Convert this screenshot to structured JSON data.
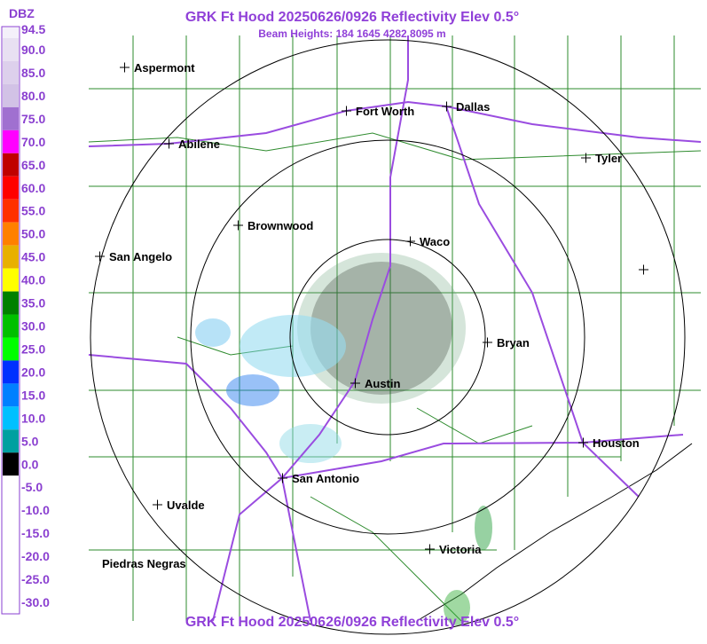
{
  "header": {
    "title": "GRK Ft Hood 20250626/0926 Reflectivity Elev 0.5°",
    "subtitle": "Beam Heights: 184 1645 4282 8095 m"
  },
  "footer": {
    "title": "GRK Ft Hood 20250626/0926 Reflectivity Elev 0.5°"
  },
  "legend": {
    "unit": "DBZ",
    "labels": [
      "94.5",
      "90.0",
      "85.0",
      "80.0",
      "75.0",
      "70.0",
      "65.0",
      "60.0",
      "55.0",
      "50.0",
      "45.0",
      "40.0",
      "35.0",
      "30.0",
      "25.0",
      "20.0",
      "15.0",
      "10.0",
      "5.0",
      "0.0",
      "-5.0",
      "-10.0",
      "-15.0",
      "-20.0",
      "-25.0",
      "-30.0"
    ],
    "colors": [
      "#f4f0fa",
      "#e8e0f2",
      "#ddd0ec",
      "#d2c2e6",
      "#a070d0",
      "#ff00ff",
      "#c00000",
      "#ff0000",
      "#ff3000",
      "#ff8000",
      "#e8b000",
      "#ffff00",
      "#008000",
      "#00c000",
      "#00ff00",
      "#0030ff",
      "#0080ff",
      "#00c0ff",
      "#00a0a0",
      "#000000",
      "#ffffff",
      "#ffffff",
      "#ffffff",
      "#ffffff",
      "#ffffff"
    ]
  },
  "cities": [
    {
      "name": "Aspermont"
    },
    {
      "name": "Abilene"
    },
    {
      "name": "Fort Worth"
    },
    {
      "name": "Dallas"
    },
    {
      "name": "Tyler"
    },
    {
      "name": "Brownwood"
    },
    {
      "name": "Waco"
    },
    {
      "name": "San Angelo"
    },
    {
      "name": "Bryan"
    },
    {
      "name": "Austin"
    },
    {
      "name": "Houston"
    },
    {
      "name": "San Antonio"
    },
    {
      "name": "Uvalde"
    },
    {
      "name": "Victoria"
    },
    {
      "name": "Piedras Negras"
    }
  ]
}
